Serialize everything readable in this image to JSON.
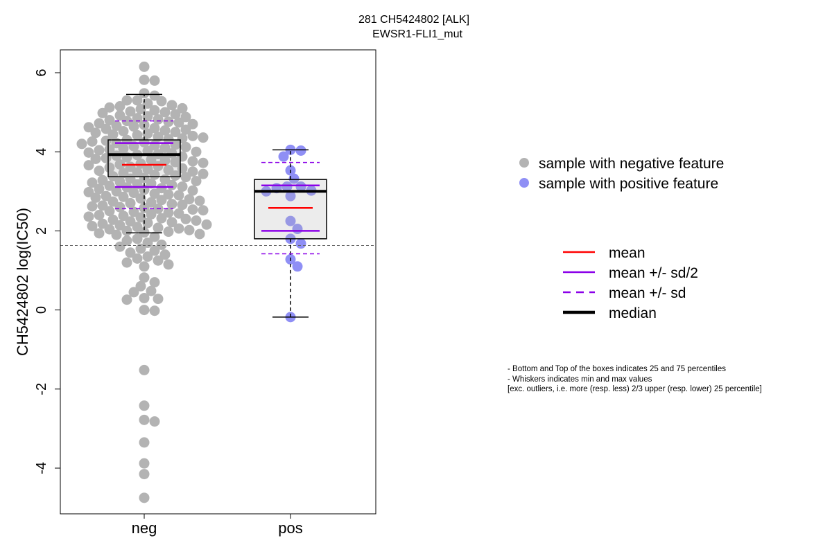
{
  "chart_data": {
    "type": "box",
    "title": "281 CH5424802 [ALK]",
    "subtitle": "EWSR1-FLI1_mut",
    "ylabel": "CH5424802 log(IC50)",
    "xlabel": "",
    "categories": [
      "neg",
      "pos"
    ],
    "ylim": [
      -5.2,
      6.6
    ],
    "yticks": [
      -4,
      -2,
      0,
      2,
      4,
      6
    ],
    "reference_line": 1.63,
    "series": [
      {
        "name": "neg",
        "color": "#b3b3b3",
        "box": {
          "min": 1.95,
          "q1": 3.37,
          "median": 3.93,
          "q3": 4.3,
          "max": 5.45
        },
        "mean": 3.67,
        "sd_half": [
          3.11,
          4.22
        ],
        "sd": [
          2.56,
          4.78
        ],
        "points": [
          6.15,
          5.82,
          5.8,
          5.48,
          5.42,
          5.3,
          5.3,
          5.28,
          5.22,
          5.18,
          5.15,
          5.12,
          5.1,
          5.08,
          5.05,
          5.02,
          5.0,
          4.98,
          4.95,
          4.92,
          4.9,
          4.88,
          4.85,
          4.82,
          4.8,
          4.78,
          4.76,
          4.74,
          4.72,
          4.7,
          4.68,
          4.66,
          4.64,
          4.62,
          4.6,
          4.58,
          4.56,
          4.54,
          4.52,
          4.5,
          4.48,
          4.46,
          4.44,
          4.42,
          4.4,
          4.38,
          4.36,
          4.34,
          4.32,
          4.3,
          4.28,
          4.26,
          4.24,
          4.22,
          4.2,
          4.18,
          4.16,
          4.14,
          4.12,
          4.1,
          4.08,
          4.06,
          4.04,
          4.02,
          4.0,
          3.98,
          3.96,
          3.94,
          3.92,
          3.9,
          3.88,
          3.86,
          3.84,
          3.82,
          3.8,
          3.78,
          3.76,
          3.74,
          3.72,
          3.7,
          3.68,
          3.66,
          3.64,
          3.62,
          3.6,
          3.58,
          3.56,
          3.54,
          3.52,
          3.5,
          3.48,
          3.46,
          3.44,
          3.42,
          3.4,
          3.38,
          3.36,
          3.34,
          3.32,
          3.3,
          3.28,
          3.26,
          3.24,
          3.22,
          3.2,
          3.18,
          3.16,
          3.14,
          3.12,
          3.1,
          3.08,
          3.06,
          3.04,
          3.02,
          3.0,
          2.98,
          2.96,
          2.94,
          2.92,
          2.9,
          2.88,
          2.86,
          2.84,
          2.82,
          2.8,
          2.78,
          2.76,
          2.74,
          2.72,
          2.7,
          2.68,
          2.66,
          2.64,
          2.62,
          2.6,
          2.58,
          2.56,
          2.54,
          2.52,
          2.5,
          2.48,
          2.46,
          2.44,
          2.42,
          2.4,
          2.38,
          2.36,
          2.34,
          2.32,
          2.3,
          2.28,
          2.26,
          2.24,
          2.22,
          2.2,
          2.18,
          2.16,
          2.14,
          2.12,
          2.1,
          2.08,
          2.06,
          2.04,
          2.02,
          2.0,
          1.98,
          1.96,
          1.94,
          1.92,
          1.9,
          1.85,
          1.8,
          1.75,
          1.7,
          1.65,
          1.6,
          1.55,
          1.5,
          1.45,
          1.4,
          1.35,
          1.3,
          1.25,
          1.2,
          1.15,
          1.1,
          0.82,
          0.7,
          0.6,
          0.48,
          0.45,
          0.3,
          0.28,
          0.26,
          0.0,
          -0.02,
          -1.52,
          -2.42,
          -2.78,
          -2.82,
          -3.35,
          -3.88,
          -4.15,
          -4.75
        ]
      },
      {
        "name": "pos",
        "color": "#8f8ff5",
        "box": {
          "min": -0.18,
          "q1": 1.8,
          "median": 3.0,
          "q3": 3.3,
          "max": 4.05
        },
        "mean": 2.58,
        "sd_half": [
          2.0,
          3.15
        ],
        "sd": [
          1.42,
          3.73
        ],
        "points": [
          4.05,
          4.03,
          3.88,
          3.53,
          3.32,
          3.12,
          3.12,
          3.08,
          3.02,
          3.0,
          2.88,
          2.25,
          2.05,
          1.8,
          1.68,
          1.28,
          1.1,
          -0.18
        ]
      }
    ],
    "legend_points": [
      {
        "label": "sample with negative feature",
        "color": "#b3b3b3"
      },
      {
        "label": "sample with positive feature",
        "color": "#8f8ff5"
      }
    ],
    "legend_lines": [
      {
        "label": "mean",
        "color": "#ff0000",
        "style": "solid"
      },
      {
        "label": "mean +/- sd/2",
        "color": "#8b00e8",
        "style": "solid"
      },
      {
        "label": "mean +/- sd",
        "color": "#8b00e8",
        "style": "dashed"
      },
      {
        "label": "median",
        "color": "#000000",
        "style": "thick"
      }
    ],
    "notes": [
      "- Bottom and Top of the boxes indicates 25 and 75 percentiles",
      "- Whiskers indicates min and max values",
      "[exc. outliers, i.e. more (resp. less) 2/3 upper (resp. lower) 25 percentile]"
    ]
  }
}
